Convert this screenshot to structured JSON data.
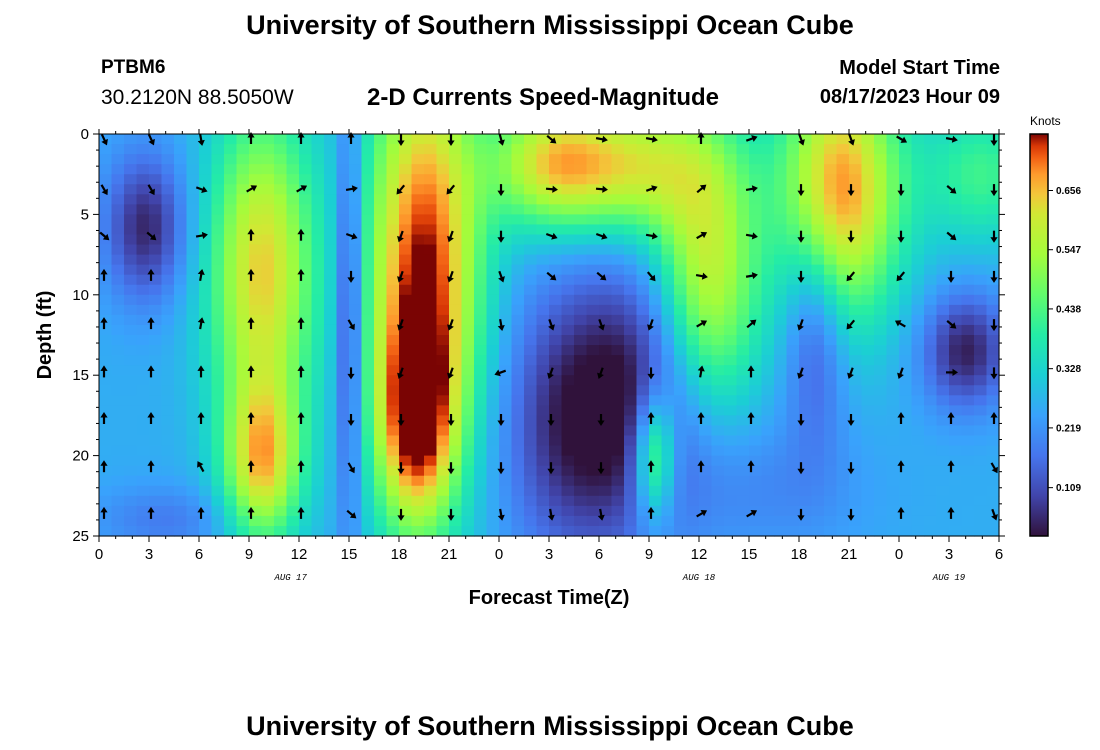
{
  "header": {
    "title": "University of Southern Mississippi Ocean Cube",
    "station": "PTBM6",
    "coordinates": "30.2120N  88.5050W",
    "plot_title": "2-D Currents Speed-Magnitude",
    "model_label": "Model Start Time",
    "model_time": "08/17/2023 Hour 09"
  },
  "footer": {
    "title": "University of Southern Mississippi Ocean Cube"
  },
  "colorbar": {
    "unit": "Knots",
    "ticks": [
      "0.656",
      "0.547",
      "0.438",
      "0.328",
      "0.219",
      "0.109"
    ],
    "range": [
      0.02,
      0.76
    ]
  },
  "chart_data": {
    "type": "heatmap",
    "title": "2-D Currents Speed-Magnitude",
    "xlabel": "Forecast Time(Z)",
    "ylabel": "Depth (ft)",
    "x_range_hours": [
      0,
      54
    ],
    "ylim": [
      0,
      25
    ],
    "y_ticks": [
      "0",
      "5",
      "10",
      "15",
      "20",
      "25"
    ],
    "x_ticks": [
      "0",
      "3",
      "6",
      "9",
      "12",
      "15",
      "18",
      "21",
      "0",
      "3",
      "6",
      "9",
      "12",
      "15",
      "18",
      "21",
      "0",
      "3",
      "6"
    ],
    "date_labels": [
      {
        "label": "AUG 17",
        "hour": 11.5
      },
      {
        "label": "AUG 18",
        "hour": 36
      },
      {
        "label": "AUG 19",
        "hour": 51
      }
    ],
    "value_units": "knots",
    "speed_features": [
      {
        "t": 2.8,
        "d": 5.8,
        "v": 0.05,
        "st": 1.7,
        "sd": 3.2
      },
      {
        "t": 9.8,
        "d": 8.5,
        "v": 0.64,
        "st": 2.2,
        "sd": 7.0
      },
      {
        "t": 9.8,
        "d": 20.5,
        "v": 0.6,
        "st": 1.6,
        "sd": 3.5
      },
      {
        "t": 15.0,
        "d": 11.0,
        "v": 0.05,
        "st": 0.6,
        "sd": 9.5
      },
      {
        "t": 19.5,
        "d": 8.0,
        "v": 0.75,
        "st": 2.4,
        "sd": 9.5
      },
      {
        "t": 19.0,
        "d": 18.0,
        "v": 0.62,
        "st": 1.6,
        "sd": 4.5
      },
      {
        "t": 27.0,
        "d": 1.8,
        "v": 0.55,
        "st": 2.5,
        "sd": 2.8
      },
      {
        "t": 32.0,
        "d": 2.0,
        "v": 0.58,
        "st": 3.5,
        "sd": 3.0
      },
      {
        "t": 28.5,
        "d": 18.0,
        "v": 0.05,
        "st": 3.0,
        "sd": 6.0
      },
      {
        "t": 33.0,
        "d": 16.0,
        "v": 0.08,
        "st": 3.0,
        "sd": 6.0
      },
      {
        "t": 36.5,
        "d": 9.0,
        "v": 0.6,
        "st": 2.2,
        "sd": 6.0
      },
      {
        "t": 33.3,
        "d": 20.0,
        "v": 0.58,
        "st": 0.9,
        "sd": 2.8
      },
      {
        "t": 44.5,
        "d": 3.5,
        "v": 0.7,
        "st": 2.5,
        "sd": 5.5
      },
      {
        "t": 43.0,
        "d": 12.0,
        "v": 0.1,
        "st": 1.3,
        "sd": 5.0
      },
      {
        "t": 52.0,
        "d": 13.5,
        "v": 0.04,
        "st": 1.8,
        "sd": 2.5
      },
      {
        "t": 53.0,
        "d": 2.5,
        "v": 0.42,
        "st": 2.5,
        "sd": 3.0
      },
      {
        "t": 40.0,
        "d": 22.0,
        "v": 0.2,
        "st": 4.0,
        "sd": 3.0
      },
      {
        "t": 4.0,
        "d": 24.0,
        "v": 0.18,
        "st": 3.0,
        "sd": 1.5
      }
    ],
    "speed_baseline": 0.26,
    "arrow_hours": [
      0,
      3,
      6,
      9,
      12,
      15,
      18,
      21,
      24,
      27,
      30,
      33,
      36,
      39,
      42,
      45,
      48,
      51,
      54
    ],
    "arrow_depths": [
      0,
      3.3,
      6.2,
      8.7,
      11.7,
      14.7,
      17.6,
      20.6,
      23.5
    ],
    "arrow_directions_deg": [
      [
        155,
        155,
        170,
        0,
        0,
        0,
        180,
        180,
        165,
        130,
        100,
        100,
        0,
        70,
        160,
        160,
        120,
        100,
        180
      ],
      [
        150,
        150,
        110,
        60,
        60,
        80,
        220,
        220,
        180,
        95,
        95,
        70,
        50,
        80,
        180,
        180,
        180,
        130,
        180
      ],
      [
        130,
        130,
        80,
        0,
        0,
        110,
        200,
        200,
        180,
        110,
        110,
        100,
        60,
        100,
        180,
        180,
        180,
        130,
        180
      ],
      [
        0,
        0,
        10,
        0,
        0,
        180,
        200,
        200,
        160,
        130,
        130,
        140,
        100,
        80,
        180,
        220,
        220,
        180,
        180
      ],
      [
        0,
        0,
        10,
        0,
        0,
        150,
        200,
        200,
        170,
        160,
        160,
        200,
        60,
        50,
        200,
        220,
        300,
        130,
        180
      ],
      [
        0,
        0,
        0,
        0,
        0,
        180,
        200,
        200,
        250,
        200,
        200,
        180,
        10,
        0,
        200,
        200,
        200,
        90,
        180
      ],
      [
        0,
        0,
        0,
        0,
        0,
        180,
        180,
        180,
        180,
        180,
        180,
        0,
        0,
        0,
        180,
        180,
        0,
        0,
        0
      ],
      [
        0,
        0,
        330,
        0,
        0,
        150,
        180,
        180,
        180,
        180,
        180,
        0,
        0,
        0,
        180,
        180,
        0,
        0,
        150
      ],
      [
        0,
        0,
        0,
        0,
        0,
        130,
        180,
        180,
        170,
        170,
        170,
        0,
        60,
        60,
        180,
        180,
        0,
        0,
        160
      ]
    ]
  }
}
